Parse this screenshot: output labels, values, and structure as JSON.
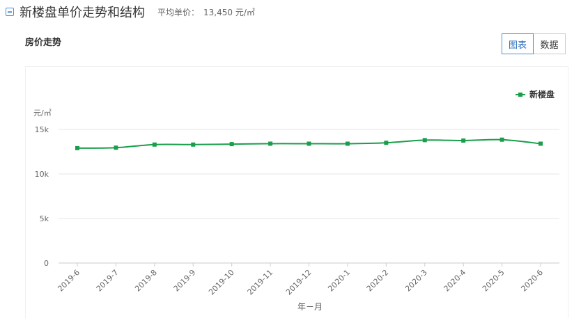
{
  "header": {
    "title": "新楼盘单价走势和结构",
    "avg_label": "平均单价：",
    "avg_value": "13,450 元/㎡"
  },
  "subtitle": "房价走势",
  "toggle": {
    "chart_label": "图表",
    "data_label": "数据"
  },
  "colors": {
    "series": "#1a9e4b",
    "accent": "#4a90d9"
  },
  "chart_data": {
    "type": "line",
    "categories": [
      "2019-6",
      "2019-7",
      "2019-8",
      "2019-9",
      "2019-10",
      "2019-11",
      "2019-12",
      "2020-1",
      "2020-2",
      "2020-3",
      "2020-4",
      "2020-5",
      "2020-6"
    ],
    "series": [
      {
        "name": "新楼盘",
        "values": [
          12900,
          12950,
          13300,
          13300,
          13350,
          13400,
          13400,
          13400,
          13500,
          13800,
          13750,
          13850,
          13400
        ]
      }
    ],
    "ylabel": "元/㎡",
    "xlabel": "年－月",
    "yticks": [
      0,
      5000,
      10000,
      15000
    ],
    "ytick_labels": [
      "0",
      "5k",
      "10k",
      "15k"
    ],
    "ylim": [
      0,
      15000
    ],
    "grid": true,
    "legend_position": "top-right"
  }
}
